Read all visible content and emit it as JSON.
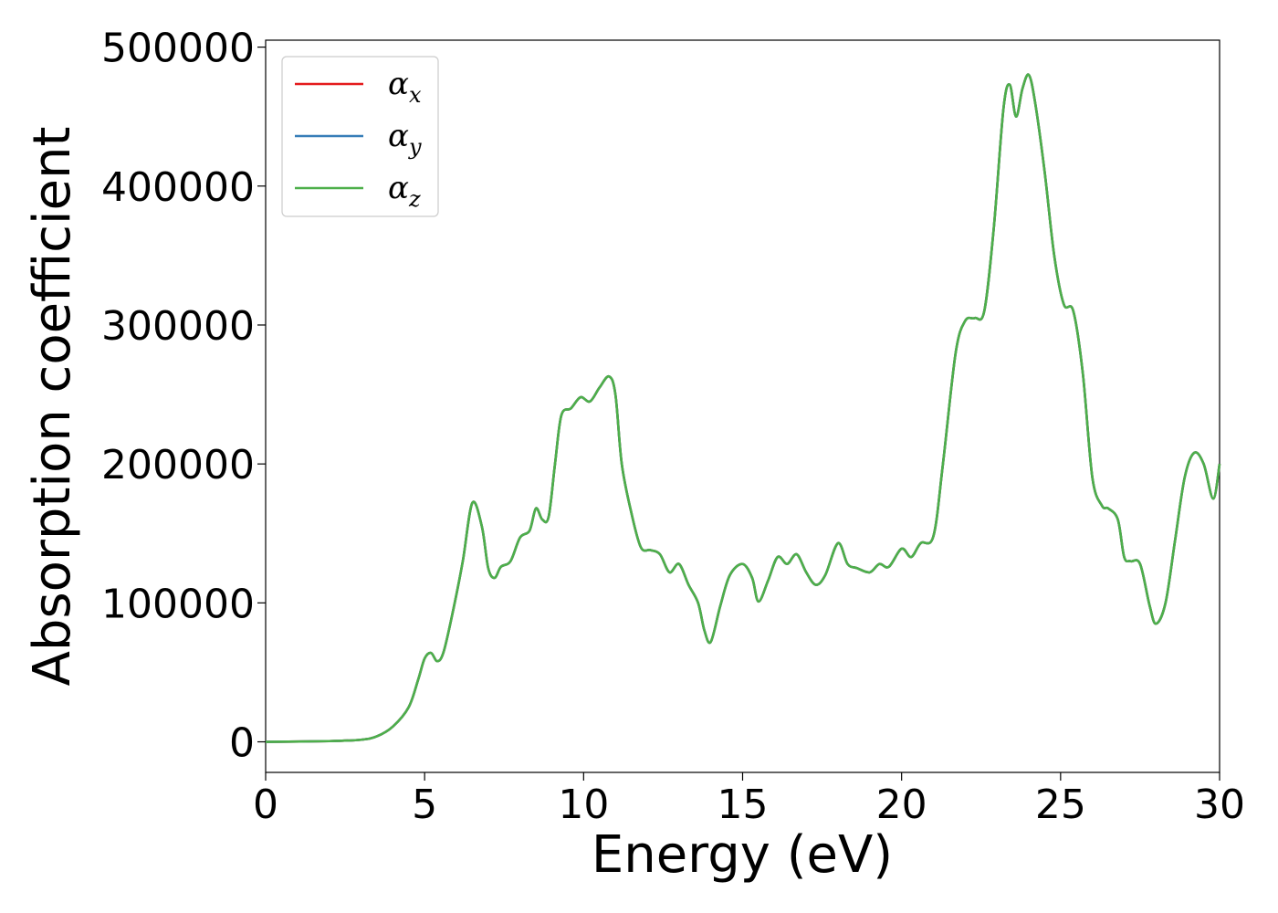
{
  "chart_data": {
    "type": "line",
    "xlabel": "Energy (eV)",
    "ylabel": "Absorption coefficient",
    "xlim": [
      0,
      30
    ],
    "ylim": [
      -22000,
      505000
    ],
    "xticks": [
      0,
      5,
      10,
      15,
      20,
      25,
      30
    ],
    "yticks": [
      0,
      100000,
      200000,
      300000,
      400000,
      500000
    ],
    "grid": false,
    "legend_position": "top-left",
    "x": [
      0,
      2,
      3,
      3.5,
      4,
      4.5,
      4.8,
      5.0,
      5.2,
      5.4,
      5.6,
      5.9,
      6.2,
      6.5,
      6.8,
      7.0,
      7.2,
      7.4,
      7.7,
      8.0,
      8.3,
      8.5,
      8.7,
      8.9,
      9.1,
      9.3,
      9.6,
      9.9,
      10.2,
      10.5,
      10.8,
      11.0,
      11.2,
      11.5,
      11.8,
      12.1,
      12.4,
      12.7,
      13.0,
      13.3,
      13.6,
      13.8,
      14.0,
      14.3,
      14.6,
      15.0,
      15.3,
      15.5,
      15.8,
      16.1,
      16.4,
      16.7,
      17.0,
      17.3,
      17.6,
      18.0,
      18.3,
      18.6,
      19.0,
      19.3,
      19.6,
      20.0,
      20.3,
      20.6,
      21.0,
      21.3,
      21.7,
      22.0,
      22.3,
      22.6,
      22.9,
      23.2,
      23.4,
      23.6,
      23.8,
      24.0,
      24.2,
      24.5,
      24.8,
      25.1,
      25.4,
      25.7,
      26.0,
      26.3,
      26.5,
      26.8,
      27.0,
      27.2,
      27.5,
      27.8,
      28.0,
      28.3,
      28.6,
      28.9,
      29.2,
      29.5,
      29.8,
      30.0
    ],
    "series": [
      {
        "name": "α_x",
        "color": "#e41a1c",
        "values": [
          0,
          500,
          1500,
          4000,
          11000,
          25000,
          45000,
          60000,
          64000,
          58000,
          65000,
          95000,
          130000,
          172000,
          155000,
          125000,
          118000,
          126000,
          130000,
          147000,
          152000,
          168000,
          160000,
          162000,
          200000,
          235000,
          240000,
          248000,
          245000,
          255000,
          263000,
          250000,
          200000,
          165000,
          140000,
          138000,
          135000,
          122000,
          128000,
          113000,
          100000,
          80000,
          72000,
          98000,
          120000,
          128000,
          118000,
          101000,
          116000,
          133000,
          128000,
          135000,
          122000,
          113000,
          120000,
          143000,
          128000,
          125000,
          122000,
          128000,
          126000,
          139000,
          133000,
          143000,
          148000,
          200000,
          280000,
          303000,
          305000,
          310000,
          370000,
          455000,
          473000,
          450000,
          470000,
          480000,
          460000,
          410000,
          350000,
          315000,
          310000,
          265000,
          190000,
          170000,
          168000,
          160000,
          133000,
          130000,
          128000,
          98000,
          85000,
          100000,
          145000,
          190000,
          208000,
          200000,
          175000,
          200000
        ]
      },
      {
        "name": "α_y",
        "color": "#377eb8",
        "values": [
          0,
          500,
          1500,
          4000,
          11000,
          25000,
          45000,
          60000,
          64000,
          58000,
          65000,
          95000,
          130000,
          172000,
          155000,
          125000,
          118000,
          126000,
          130000,
          147000,
          152000,
          168000,
          160000,
          162000,
          200000,
          235000,
          240000,
          248000,
          245000,
          255000,
          263000,
          250000,
          200000,
          165000,
          140000,
          138000,
          135000,
          122000,
          128000,
          113000,
          100000,
          80000,
          72000,
          98000,
          120000,
          128000,
          118000,
          101000,
          116000,
          133000,
          128000,
          135000,
          122000,
          113000,
          120000,
          143000,
          128000,
          125000,
          122000,
          128000,
          126000,
          139000,
          133000,
          143000,
          148000,
          200000,
          280000,
          303000,
          305000,
          310000,
          370000,
          455000,
          473000,
          450000,
          470000,
          480000,
          460000,
          410000,
          350000,
          315000,
          310000,
          265000,
          190000,
          170000,
          168000,
          160000,
          133000,
          130000,
          128000,
          98000,
          85000,
          100000,
          145000,
          190000,
          208000,
          200000,
          175000,
          200000
        ]
      },
      {
        "name": "α_z",
        "color": "#4daf4a",
        "values": [
          0,
          500,
          1500,
          4000,
          11000,
          25000,
          45000,
          60000,
          64000,
          58000,
          65000,
          95000,
          130000,
          172000,
          155000,
          125000,
          118000,
          126000,
          130000,
          147000,
          152000,
          168000,
          160000,
          162000,
          200000,
          235000,
          240000,
          248000,
          245000,
          255000,
          263000,
          250000,
          200000,
          165000,
          140000,
          138000,
          135000,
          122000,
          128000,
          113000,
          100000,
          80000,
          72000,
          98000,
          120000,
          128000,
          118000,
          101000,
          116000,
          133000,
          128000,
          135000,
          122000,
          113000,
          120000,
          143000,
          128000,
          125000,
          122000,
          128000,
          126000,
          139000,
          133000,
          143000,
          148000,
          200000,
          280000,
          303000,
          305000,
          310000,
          370000,
          455000,
          473000,
          450000,
          470000,
          480000,
          460000,
          410000,
          350000,
          315000,
          310000,
          265000,
          190000,
          170000,
          168000,
          160000,
          133000,
          130000,
          128000,
          98000,
          85000,
          100000,
          145000,
          190000,
          208000,
          200000,
          175000,
          200000
        ]
      }
    ],
    "legend": [
      {
        "symbol": "α",
        "sub": "x",
        "color": "#e41a1c"
      },
      {
        "symbol": "α",
        "sub": "y",
        "color": "#377eb8"
      },
      {
        "symbol": "α",
        "sub": "z",
        "color": "#4daf4a"
      }
    ]
  }
}
